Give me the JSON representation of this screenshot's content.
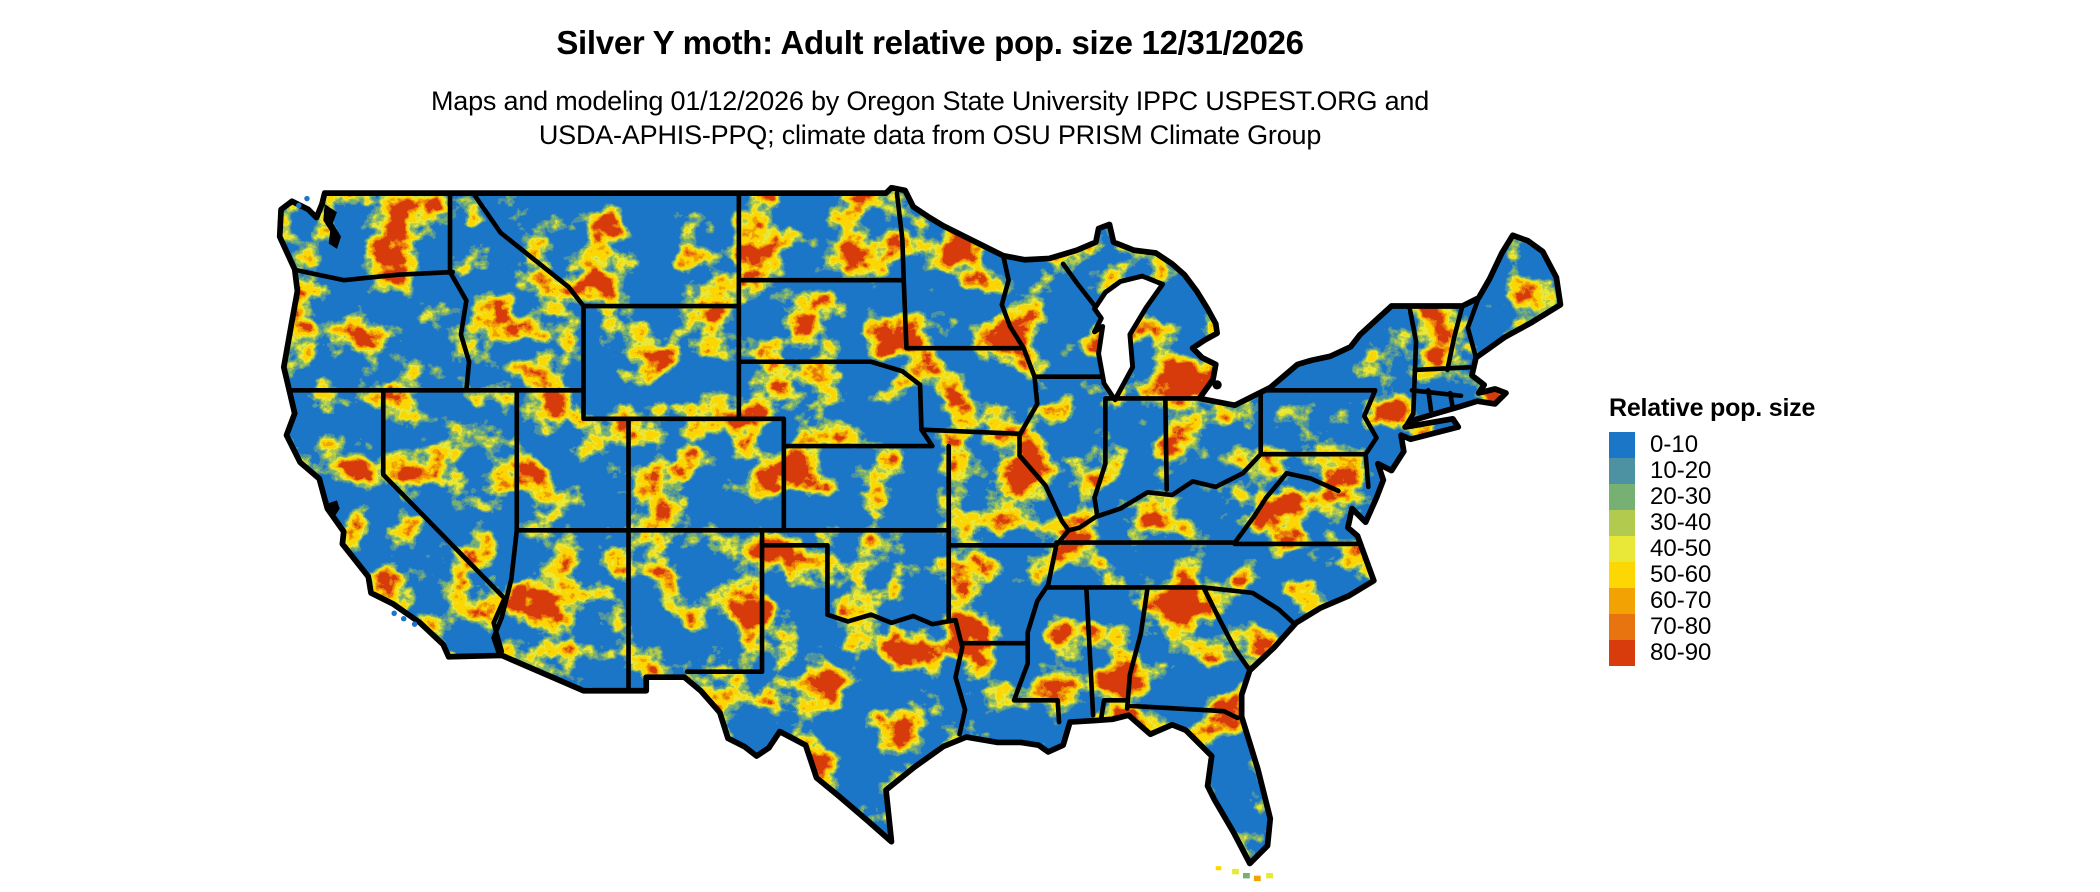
{
  "header": {
    "title": "Silver Y moth: Adult relative pop. size 12/31/2026",
    "subtitle_line1": "Maps and modeling 01/12/2026 by Oregon State University IPPC USPEST.ORG and",
    "subtitle_line2": "USDA-APHIS-PPQ; climate data from OSU PRISM Climate Group"
  },
  "map": {
    "base_color": "#1C76C8",
    "border_color": "#000000",
    "water_color": "#FFFFFF"
  },
  "legend": {
    "title": "Relative pop. size",
    "items": [
      {
        "label": "0-10",
        "color": "#1C76C8"
      },
      {
        "label": "10-20",
        "color": "#4D92A3"
      },
      {
        "label": "20-30",
        "color": "#76B073"
      },
      {
        "label": "30-40",
        "color": "#B2CB4E"
      },
      {
        "label": "40-50",
        "color": "#E9E838"
      },
      {
        "label": "50-60",
        "color": "#FCD703"
      },
      {
        "label": "60-70",
        "color": "#F2A303"
      },
      {
        "label": "70-80",
        "color": "#E87410"
      },
      {
        "label": "80-90",
        "color": "#D83B0C"
      }
    ]
  }
}
